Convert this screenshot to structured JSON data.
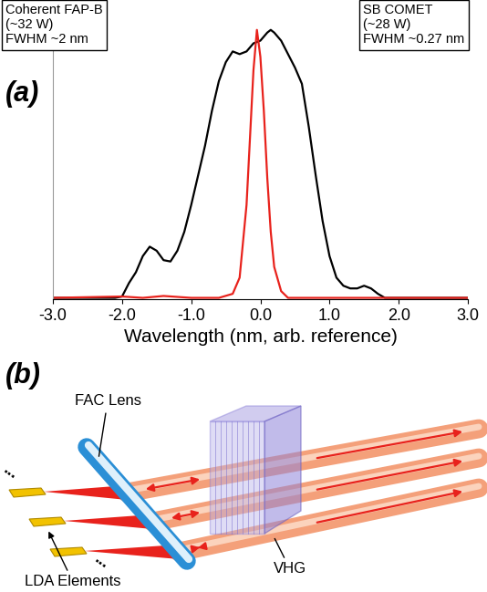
{
  "chart_data": {
    "type": "line",
    "panel_label": "(a)",
    "x_label": "Wavelength (nm, arb. reference)",
    "xlim": [
      -3.0,
      3.0
    ],
    "xticks": [
      {
        "value": -3.0,
        "label": "-3.0"
      },
      {
        "value": -2.0,
        "label": "-2.0"
      },
      {
        "value": -1.0,
        "label": "-1.0"
      },
      {
        "value": 0.0,
        "label": "0.0"
      },
      {
        "value": 1.0,
        "label": "1.0"
      },
      {
        "value": 2.0,
        "label": "2.0"
      },
      {
        "value": 3.0,
        "label": "3.0"
      }
    ],
    "ylim": [
      0,
      1.05
    ],
    "yticks": [],
    "tick_labels": "x",
    "grid": false,
    "series": [
      {
        "name": "Coherent FAP-B\n(~32 W)\nFWHM ~2 nm",
        "color": "#000000",
        "x": [
          -3.0,
          -2.5,
          -2.1,
          -2.0,
          -1.9,
          -1.8,
          -1.7,
          -1.6,
          -1.5,
          -1.4,
          -1.3,
          -1.2,
          -1.1,
          -1.0,
          -0.9,
          -0.8,
          -0.7,
          -0.6,
          -0.5,
          -0.4,
          -0.3,
          -0.2,
          -0.1,
          0.0,
          0.1,
          0.15,
          0.2,
          0.3,
          0.4,
          0.5,
          0.6,
          0.7,
          0.8,
          0.9,
          1.0,
          1.1,
          1.2,
          1.3,
          1.4,
          1.5,
          1.6,
          1.7,
          1.8,
          2.0,
          2.5,
          3.0
        ],
        "values": [
          0.005,
          0.005,
          0.005,
          0.01,
          0.06,
          0.1,
          0.16,
          0.195,
          0.18,
          0.145,
          0.14,
          0.18,
          0.25,
          0.35,
          0.46,
          0.57,
          0.7,
          0.81,
          0.88,
          0.92,
          0.91,
          0.92,
          0.95,
          0.96,
          0.99,
          1.0,
          0.99,
          0.96,
          0.91,
          0.86,
          0.8,
          0.64,
          0.46,
          0.29,
          0.16,
          0.08,
          0.05,
          0.04,
          0.04,
          0.05,
          0.04,
          0.02,
          0.005,
          0.005,
          0.005,
          0.005
        ]
      },
      {
        "name": "SB COMET\n(~28 W)\nFWHM ~0.27 nm",
        "color": "#e8221c",
        "x": [
          -3.0,
          -2.0,
          -1.7,
          -1.4,
          -1.0,
          -0.6,
          -0.4,
          -0.3,
          -0.2,
          -0.15,
          -0.1,
          -0.05,
          0.0,
          0.05,
          0.1,
          0.15,
          0.2,
          0.3,
          0.4,
          3.0
        ],
        "values": [
          0.005,
          0.01,
          0.005,
          0.012,
          0.005,
          0.005,
          0.02,
          0.08,
          0.35,
          0.6,
          0.85,
          1.0,
          0.9,
          0.7,
          0.45,
          0.25,
          0.12,
          0.03,
          0.005,
          0.005
        ]
      }
    ]
  },
  "diagram": {
    "panel_label": "(b)",
    "labels": {
      "lens": "FAC Lens",
      "emitters": "LDA Elements",
      "grating": "VHG"
    },
    "continuation_marks": "..."
  }
}
